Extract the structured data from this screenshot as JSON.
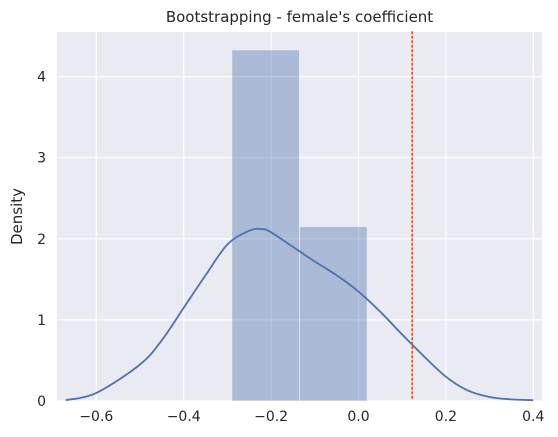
{
  "chart_data": {
    "type": "histogram",
    "title": "Bootstrapping - female's coefficient",
    "xlabel": "",
    "ylabel": "Density",
    "xlim": [
      -0.69,
      0.42
    ],
    "ylim": [
      0,
      4.55
    ],
    "xticks": [
      -0.6,
      -0.4,
      -0.2,
      0.0,
      0.2,
      0.4
    ],
    "xtick_labels": [
      "−0.6",
      "−0.4",
      "−0.2",
      "0.0",
      "0.2",
      "0.4"
    ],
    "yticks": [
      0,
      1,
      2,
      3,
      4
    ],
    "ytick_labels": [
      "0",
      "1",
      "2",
      "3",
      "4"
    ],
    "grid": true,
    "bars": [
      {
        "x0": -0.29,
        "x1": -0.135,
        "density": 4.33
      },
      {
        "x0": -0.135,
        "x1": 0.02,
        "density": 2.15
      }
    ],
    "kde": {
      "x": [
        -0.67,
        -0.6,
        -0.5,
        -0.45,
        -0.4,
        -0.35,
        -0.3,
        -0.25,
        -0.22,
        -0.2,
        -0.15,
        -0.1,
        -0.05,
        0.0,
        0.05,
        0.1,
        0.15,
        0.2,
        0.25,
        0.3,
        0.35,
        0.4
      ],
      "y": [
        0.01,
        0.1,
        0.45,
        0.75,
        1.15,
        1.55,
        1.93,
        2.1,
        2.12,
        2.08,
        1.9,
        1.72,
        1.55,
        1.35,
        1.1,
        0.82,
        0.55,
        0.3,
        0.13,
        0.05,
        0.02,
        0.01
      ]
    },
    "vline": {
      "x": 0.123,
      "style": "dotted"
    },
    "colors": {
      "plot_background": "#eaeaf2",
      "grid": "#ffffff",
      "bar_fill": "#4c72b0",
      "bar_alpha": 0.4,
      "kde_line": "#4c72b0",
      "vline": "#e8501a"
    }
  }
}
